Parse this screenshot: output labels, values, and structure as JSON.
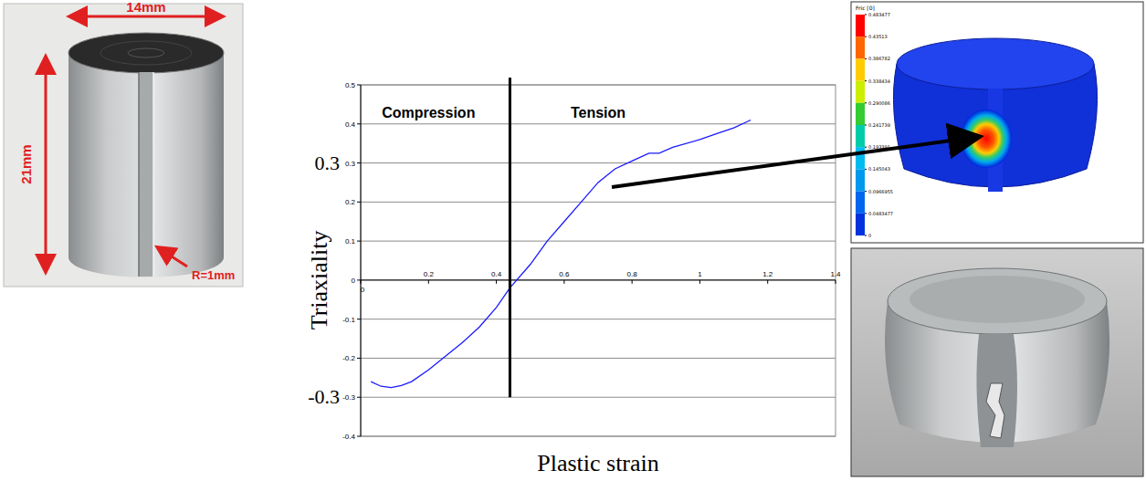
{
  "chart_data": {
    "type": "line",
    "xlabel": "Plastic strain",
    "ylabel": "Triaxiality",
    "xlim": [
      0,
      1.4
    ],
    "ylim": [
      -0.4,
      0.5
    ],
    "xticks": [
      0,
      0.2,
      0.4,
      0.6,
      0.8,
      1,
      1.2,
      1.4
    ],
    "yticks": [
      -0.4,
      -0.3,
      -0.2,
      -0.1,
      0,
      0.1,
      0.2,
      0.3,
      0.4,
      0.5
    ],
    "grid": true,
    "x": [
      0.03,
      0.06,
      0.09,
      0.12,
      0.15,
      0.2,
      0.25,
      0.3,
      0.35,
      0.4,
      0.44,
      0.5,
      0.55,
      0.6,
      0.65,
      0.7,
      0.75,
      0.8,
      0.85,
      0.88,
      0.92,
      1.0,
      1.05,
      1.1,
      1.15
    ],
    "series": [
      {
        "color": "#1a1aff",
        "line_style": "solid",
        "values": [
          -0.26,
          -0.272,
          -0.275,
          -0.27,
          -0.26,
          -0.23,
          -0.195,
          -0.16,
          -0.12,
          -0.07,
          -0.02,
          0.04,
          0.1,
          0.15,
          0.2,
          0.25,
          0.285,
          0.305,
          0.325,
          0.325,
          0.34,
          0.36,
          0.375,
          0.39,
          0.41
        ]
      }
    ],
    "annotations": [
      {
        "text": "Compression",
        "x": 0.2,
        "y": 0.43
      },
      {
        "text": "Tension",
        "x": 0.7,
        "y": 0.43
      },
      {
        "text": "0.3",
        "y": 0.3
      },
      {
        "text": "-0.3",
        "y": -0.3
      }
    ],
    "divider": {
      "x": 0.44,
      "y_from": -0.3,
      "y_to": 0.5
    }
  },
  "specimen": {
    "width_label": "14mm",
    "height_label": "21mm",
    "notch_label": "R=1mm"
  },
  "contour": {
    "title": "Fric [0]",
    "colorbar_ticks": [
      0.483477,
      0.43513,
      0.386782,
      0.338434,
      0.290086,
      0.241739,
      0.193391,
      0.145043,
      0.0966955,
      0.0483477,
      0
    ]
  }
}
